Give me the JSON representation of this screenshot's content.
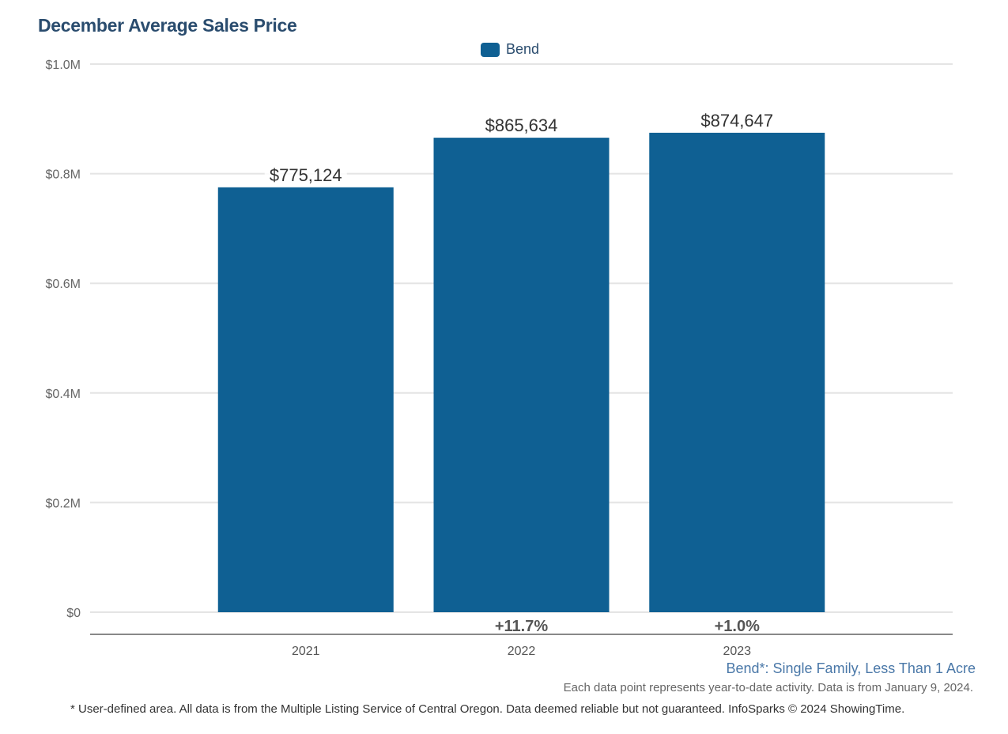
{
  "chart_data": {
    "type": "bar",
    "title": "December Average Sales Price",
    "categories": [
      "2021",
      "2022",
      "2023"
    ],
    "series": [
      {
        "name": "Bend",
        "values": [
          775124,
          865634,
          874647
        ],
        "color": "#0f6093"
      }
    ],
    "data_labels": [
      "$775,124",
      "$865,634",
      "$874,647"
    ],
    "change_labels": [
      "",
      "+11.7%",
      "+1.0%"
    ],
    "ylim": [
      0,
      1000000
    ],
    "yticks": [
      0,
      200000,
      400000,
      600000,
      800000,
      1000000
    ],
    "ytick_labels": [
      "$0",
      "$0.2M",
      "$0.4M",
      "$0.6M",
      "$0.8M",
      "$1.0M"
    ],
    "xlabel": "",
    "ylabel": "",
    "grid": true,
    "legend_position": "top-center"
  },
  "footer": {
    "subtitle": "Bend*: Single Family, Less Than 1 Acre",
    "note": "Each data point represents year-to-date activity. Data is from January 9, 2024.",
    "disclaimer": "* User-defined area. All data is from the Multiple Listing Service of Central Oregon. Data deemed reliable but not guaranteed. InfoSparks © 2024 ShowingTime."
  }
}
